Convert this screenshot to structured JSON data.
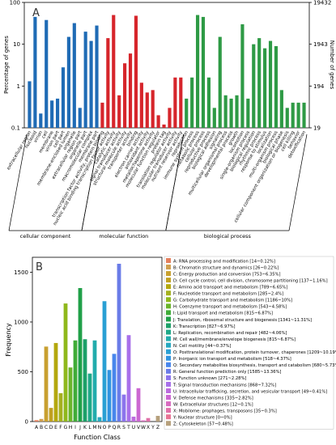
{
  "chart_data": [
    {
      "panel_label": "A",
      "type": "bar",
      "yscale": "log",
      "ylabel": "Percentage of genes",
      "ylabel_right": "Number of genes",
      "ylim": [
        0.1,
        100
      ],
      "yticks": [
        "0.1",
        "1",
        "10",
        "100"
      ],
      "yticks_right": [
        "19",
        "194",
        "1943",
        "19432"
      ],
      "categories": [
        "extracellular region",
        "nucleoid",
        "virion",
        "cell",
        "membrane",
        "virion part",
        "cell part",
        "membrane-enclosed lumen",
        "organelle",
        "extracellular region part",
        "organelle part",
        "macromolecular complex",
        "membrane part",
        "transcription factor activity, protein binding",
        "nucleic acid binding transcription factor activity",
        "catalytic activity",
        "signal transducer activity",
        "structural molecule activity",
        "transporter activity",
        "binding",
        "electron carrier activity",
        "antioxidant activity",
        "metallochaperone activity",
        "molecular function regulator",
        "protein tag",
        "translation regulator activity",
        "molecular transducer activity",
        "nutrient reservoir activity",
        "reproduction",
        "immune system process",
        "metabolic process",
        "cellular process",
        "reproductive process",
        "biological adhesion",
        "signaling",
        "multicellular organismal process",
        "developmental process",
        "growth",
        "locomotion",
        "single-organism process",
        "biological regulation",
        "rhythmic process",
        "response to stimulus",
        "localization",
        "multi-organism process",
        "biological phase",
        "cellular component organization or biogenesis",
        "cell killing",
        "behavior",
        "detoxification"
      ],
      "values": [
        1.3,
        45,
        0.22,
        38,
        0.45,
        0.5,
        2.8,
        15,
        32,
        0.3,
        20,
        12,
        28,
        0.4,
        14,
        50,
        0.6,
        3.5,
        6,
        48,
        1.2,
        0.7,
        0.8,
        0.2,
        0.12,
        0.3,
        1.6,
        1.6,
        0.5,
        1.6,
        50,
        45,
        1.6,
        0.3,
        15,
        0.6,
        0.5,
        0.6,
        30,
        0.5,
        10,
        14,
        8,
        12,
        9,
        0.8,
        0.3,
        0.4,
        0.4,
        0.4
      ],
      "groups": [
        {
          "name": "cellular component",
          "start": 0,
          "end": 12,
          "color": "#1f6bb5"
        },
        {
          "name": "molecular function",
          "start": 13,
          "end": 27,
          "color": "#d6252b"
        },
        {
          "name": "biological process",
          "start": 28,
          "end": 49,
          "color": "#2e9a45"
        }
      ]
    },
    {
      "panel_label": "B",
      "type": "bar",
      "xlabel": "Function Class",
      "ylabel": "Frequency",
      "ylim": [
        0,
        1650
      ],
      "yticks": [
        "0",
        "500",
        "1000",
        "1500"
      ],
      "categories": [
        "A",
        "B",
        "C",
        "D",
        "E",
        "F",
        "G",
        "H",
        "I",
        "J",
        "K",
        "L",
        "M",
        "N",
        "O",
        "P",
        "Q",
        "R",
        "S",
        "T",
        "U",
        "V",
        "W",
        "X",
        "Y",
        "Z"
      ],
      "values": [
        14,
        26,
        753,
        137,
        789,
        285,
        1186,
        543,
        815,
        1341,
        827,
        482,
        815,
        44,
        1209,
        518,
        680,
        1585,
        271,
        868,
        49,
        335,
        12,
        35,
        0,
        57
      ],
      "colors": [
        "#e4805e",
        "#d0a050",
        "#c8a030",
        "#c0a020",
        "#b4a80e",
        "#a4b020",
        "#8fb81c",
        "#6ab42a",
        "#40ac38",
        "#20a048",
        "#1ca068",
        "#1fa888",
        "#22acac",
        "#26a8c0",
        "#2aa0d4",
        "#3094e0",
        "#4886ec",
        "#6a7ce8",
        "#8c74ec",
        "#a870ea",
        "#bc6cde",
        "#cc68d2",
        "#d86cc0",
        "#e070a8",
        "#e87494",
        "#b6a07c"
      ],
      "legend": [
        "A: RNA processing and modification [14~0.12%]",
        "B: Chromatin structure and dynamics [26~0.22%]",
        "C: Energy production and conversion [753~6.35%]",
        "D: Cell cycle control, cell division, chromosome partitioning [137~1.16%]",
        "E: Amino acid transport and metabolism [789~6.65%]",
        "F: Nucleotide transport and metabolism [285~2.4%]",
        "G: Carbohydrate transport and metabolism [1186~10%]",
        "H: Coenzyme transport and metabolism [543~4.58%]",
        "I: Lipid transport and metabolism [815~6.87%]",
        "J: Translation, ribosomal structure and biogenesis [1341~11.31%]",
        "K: Transcription [827~6.97%]",
        "L: Replication, recombination and repair [482~4.06%]",
        "M: Cell wall/membrane/envelope biogenesis [815~6.87%]",
        "N: Cell motility [44~0.37%]",
        "O: Posttranslational modification, protein turnover, chaperones [1209~10.19%]",
        "P: Inorganic ion transport and metabolism [518~4.37%]",
        "Q: Secondary metabolites biosynthesis, transport and catabolism [680~5.73%]",
        "R: General function prediction only [1585~13.36%]",
        "S: Function unknown [271~2.28%]",
        "T: Signal transduction mechanisms [868~7.32%]",
        "U: Intracellular trafficking, secretion, and vesicular transport [49~0.41%]",
        "V: Defense mechanisms [335~2.82%]",
        "W: Extracellular structures [12~0.1%]",
        "X: Mobilome: prophages, transposons [35~0.3%]",
        "Y: Nuclear structure [0~0%]",
        "Z: Cytoskeleton [57~0.48%]"
      ]
    }
  ]
}
